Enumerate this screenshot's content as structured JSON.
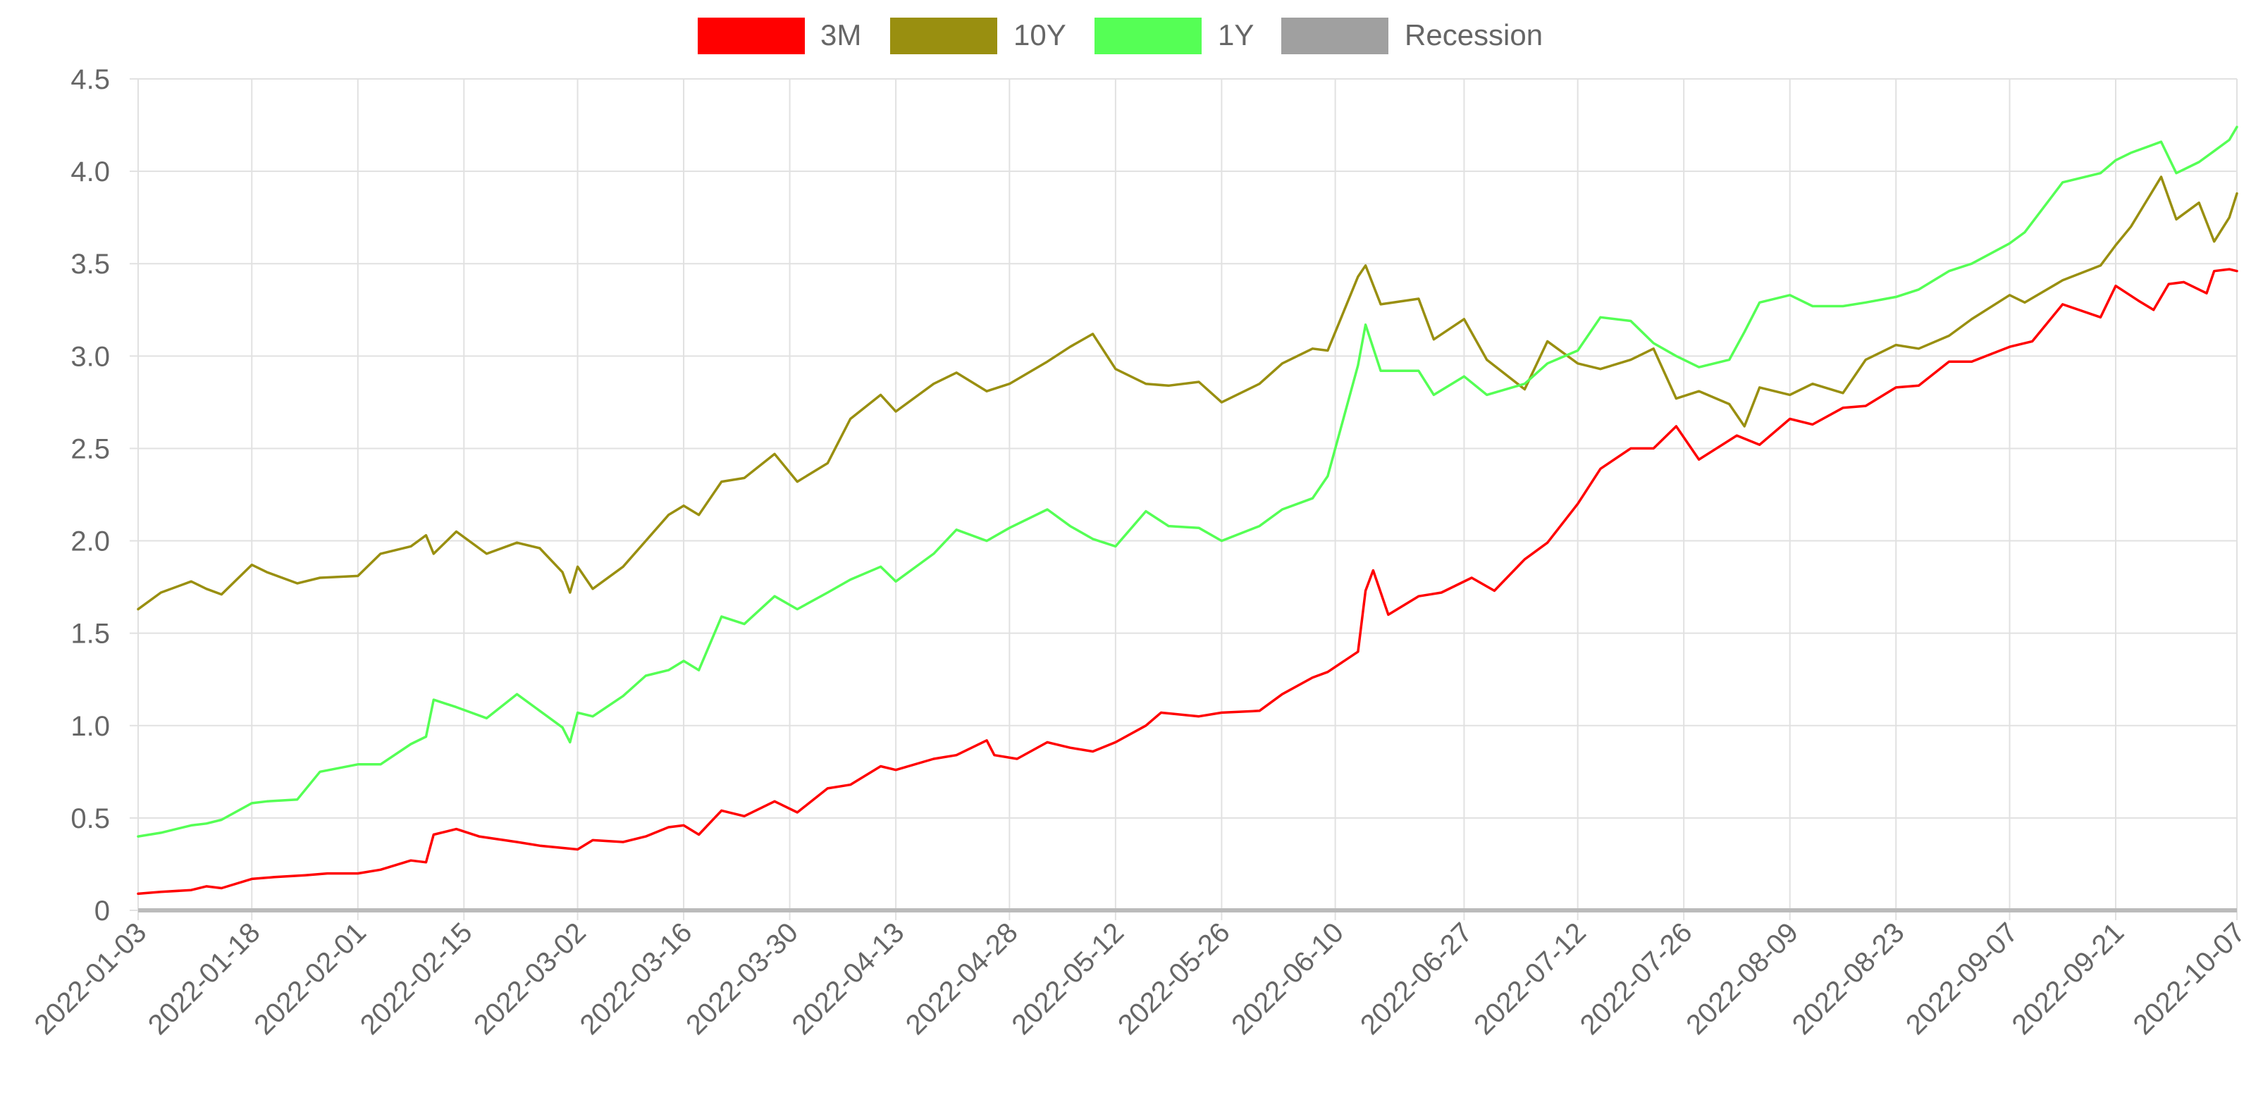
{
  "chart_data": {
    "type": "line",
    "legend": {
      "position": "top",
      "items": [
        {
          "label": "3M",
          "color": "#ff0000"
        },
        {
          "label": "10Y",
          "color": "#998f10"
        },
        {
          "label": "1Y",
          "color": "#55ff55"
        },
        {
          "label": "Recession",
          "color": "#a0a0a0"
        }
      ]
    },
    "x_start": "2022-01-03",
    "x_end": "2022-10-07",
    "x_tick_labels": [
      "2022-01-03",
      "2022-01-18",
      "2022-02-01",
      "2022-02-15",
      "2022-03-02",
      "2022-03-16",
      "2022-03-30",
      "2022-04-13",
      "2022-04-28",
      "2022-05-12",
      "2022-05-26",
      "2022-06-10",
      "2022-06-27",
      "2022-07-12",
      "2022-07-26",
      "2022-08-09",
      "2022-08-23",
      "2022-09-07",
      "2022-09-21",
      "2022-10-07"
    ],
    "y_ticks": [
      "0",
      "0.5",
      "1.0",
      "1.5",
      "2.0",
      "2.5",
      "3.0",
      "3.5",
      "4.0",
      "4.5"
    ],
    "ylim": [
      0,
      4.5
    ],
    "grid": true,
    "series": [
      {
        "name": "3M",
        "color": "#ff0000",
        "points": [
          [
            "2022-01-03",
            0.09
          ],
          [
            "2022-01-06",
            0.1
          ],
          [
            "2022-01-10",
            0.11
          ],
          [
            "2022-01-12",
            0.13
          ],
          [
            "2022-01-14",
            0.12
          ],
          [
            "2022-01-18",
            0.17
          ],
          [
            "2022-01-21",
            0.18
          ],
          [
            "2022-01-25",
            0.19
          ],
          [
            "2022-01-28",
            0.2
          ],
          [
            "2022-02-01",
            0.2
          ],
          [
            "2022-02-04",
            0.22
          ],
          [
            "2022-02-08",
            0.27
          ],
          [
            "2022-02-10",
            0.26
          ],
          [
            "2022-02-11",
            0.41
          ],
          [
            "2022-02-14",
            0.44
          ],
          [
            "2022-02-17",
            0.4
          ],
          [
            "2022-02-22",
            0.37
          ],
          [
            "2022-02-25",
            0.35
          ],
          [
            "2022-03-02",
            0.33
          ],
          [
            "2022-03-04",
            0.38
          ],
          [
            "2022-03-08",
            0.37
          ],
          [
            "2022-03-11",
            0.4
          ],
          [
            "2022-03-14",
            0.45
          ],
          [
            "2022-03-16",
            0.46
          ],
          [
            "2022-03-18",
            0.41
          ],
          [
            "2022-03-21",
            0.54
          ],
          [
            "2022-03-24",
            0.51
          ],
          [
            "2022-03-28",
            0.59
          ],
          [
            "2022-03-31",
            0.53
          ],
          [
            "2022-04-04",
            0.66
          ],
          [
            "2022-04-07",
            0.68
          ],
          [
            "2022-04-11",
            0.78
          ],
          [
            "2022-04-13",
            0.76
          ],
          [
            "2022-04-18",
            0.82
          ],
          [
            "2022-04-21",
            0.84
          ],
          [
            "2022-04-25",
            0.92
          ],
          [
            "2022-04-26",
            0.84
          ],
          [
            "2022-04-29",
            0.82
          ],
          [
            "2022-05-03",
            0.91
          ],
          [
            "2022-05-06",
            0.88
          ],
          [
            "2022-05-09",
            0.86
          ],
          [
            "2022-05-12",
            0.91
          ],
          [
            "2022-05-16",
            1.0
          ],
          [
            "2022-05-18",
            1.07
          ],
          [
            "2022-05-23",
            1.05
          ],
          [
            "2022-05-26",
            1.07
          ],
          [
            "2022-05-31",
            1.08
          ],
          [
            "2022-06-03",
            1.17
          ],
          [
            "2022-06-07",
            1.26
          ],
          [
            "2022-06-09",
            1.29
          ],
          [
            "2022-06-13",
            1.4
          ],
          [
            "2022-06-14",
            1.73
          ],
          [
            "2022-06-15",
            1.84
          ],
          [
            "2022-06-17",
            1.6
          ],
          [
            "2022-06-21",
            1.7
          ],
          [
            "2022-06-24",
            1.72
          ],
          [
            "2022-06-28",
            1.8
          ],
          [
            "2022-07-01",
            1.73
          ],
          [
            "2022-07-05",
            1.9
          ],
          [
            "2022-07-08",
            1.99
          ],
          [
            "2022-07-12",
            2.2
          ],
          [
            "2022-07-15",
            2.39
          ],
          [
            "2022-07-19",
            2.5
          ],
          [
            "2022-07-22",
            2.5
          ],
          [
            "2022-07-25",
            2.62
          ],
          [
            "2022-07-28",
            2.44
          ],
          [
            "2022-08-02",
            2.57
          ],
          [
            "2022-08-05",
            2.52
          ],
          [
            "2022-08-09",
            2.66
          ],
          [
            "2022-08-12",
            2.63
          ],
          [
            "2022-08-16",
            2.72
          ],
          [
            "2022-08-19",
            2.73
          ],
          [
            "2022-08-23",
            2.83
          ],
          [
            "2022-08-26",
            2.84
          ],
          [
            "2022-08-30",
            2.97
          ],
          [
            "2022-09-02",
            2.97
          ],
          [
            "2022-09-07",
            3.05
          ],
          [
            "2022-09-10",
            3.08
          ],
          [
            "2022-09-14",
            3.28
          ],
          [
            "2022-09-19",
            3.21
          ],
          [
            "2022-09-21",
            3.38
          ],
          [
            "2022-09-24",
            3.3
          ],
          [
            "2022-09-26",
            3.25
          ],
          [
            "2022-09-28",
            3.39
          ],
          [
            "2022-09-30",
            3.4
          ],
          [
            "2022-10-03",
            3.34
          ],
          [
            "2022-10-04",
            3.46
          ],
          [
            "2022-10-06",
            3.47
          ],
          [
            "2022-10-07",
            3.46
          ]
        ]
      },
      {
        "name": "10Y",
        "color": "#998f10",
        "points": [
          [
            "2022-01-03",
            1.63
          ],
          [
            "2022-01-06",
            1.72
          ],
          [
            "2022-01-10",
            1.78
          ],
          [
            "2022-01-12",
            1.74
          ],
          [
            "2022-01-14",
            1.71
          ],
          [
            "2022-01-18",
            1.87
          ],
          [
            "2022-01-20",
            1.83
          ],
          [
            "2022-01-24",
            1.77
          ],
          [
            "2022-01-27",
            1.8
          ],
          [
            "2022-02-01",
            1.81
          ],
          [
            "2022-02-04",
            1.93
          ],
          [
            "2022-02-08",
            1.97
          ],
          [
            "2022-02-10",
            2.03
          ],
          [
            "2022-02-11",
            1.93
          ],
          [
            "2022-02-14",
            2.05
          ],
          [
            "2022-02-18",
            1.93
          ],
          [
            "2022-02-22",
            1.99
          ],
          [
            "2022-02-25",
            1.96
          ],
          [
            "2022-02-28",
            1.83
          ],
          [
            "2022-03-01",
            1.72
          ],
          [
            "2022-03-02",
            1.86
          ],
          [
            "2022-03-04",
            1.74
          ],
          [
            "2022-03-08",
            1.86
          ],
          [
            "2022-03-11",
            2.0
          ],
          [
            "2022-03-14",
            2.14
          ],
          [
            "2022-03-16",
            2.19
          ],
          [
            "2022-03-18",
            2.14
          ],
          [
            "2022-03-21",
            2.32
          ],
          [
            "2022-03-24",
            2.34
          ],
          [
            "2022-03-28",
            2.47
          ],
          [
            "2022-03-31",
            2.32
          ],
          [
            "2022-04-04",
            2.42
          ],
          [
            "2022-04-07",
            2.66
          ],
          [
            "2022-04-11",
            2.79
          ],
          [
            "2022-04-13",
            2.7
          ],
          [
            "2022-04-18",
            2.85
          ],
          [
            "2022-04-21",
            2.91
          ],
          [
            "2022-04-25",
            2.81
          ],
          [
            "2022-04-28",
            2.85
          ],
          [
            "2022-05-03",
            2.97
          ],
          [
            "2022-05-06",
            3.05
          ],
          [
            "2022-05-09",
            3.12
          ],
          [
            "2022-05-12",
            2.93
          ],
          [
            "2022-05-16",
            2.85
          ],
          [
            "2022-05-19",
            2.84
          ],
          [
            "2022-05-23",
            2.86
          ],
          [
            "2022-05-26",
            2.75
          ],
          [
            "2022-05-31",
            2.85
          ],
          [
            "2022-06-03",
            2.96
          ],
          [
            "2022-06-07",
            3.04
          ],
          [
            "2022-06-09",
            3.03
          ],
          [
            "2022-06-13",
            3.43
          ],
          [
            "2022-06-14",
            3.49
          ],
          [
            "2022-06-16",
            3.28
          ],
          [
            "2022-06-21",
            3.31
          ],
          [
            "2022-06-23",
            3.09
          ],
          [
            "2022-06-27",
            3.2
          ],
          [
            "2022-06-30",
            2.98
          ],
          [
            "2022-07-05",
            2.82
          ],
          [
            "2022-07-08",
            3.08
          ],
          [
            "2022-07-12",
            2.96
          ],
          [
            "2022-07-15",
            2.93
          ],
          [
            "2022-07-19",
            2.98
          ],
          [
            "2022-07-22",
            3.04
          ],
          [
            "2022-07-25",
            2.77
          ],
          [
            "2022-07-28",
            2.81
          ],
          [
            "2022-08-01",
            2.74
          ],
          [
            "2022-08-03",
            2.62
          ],
          [
            "2022-08-05",
            2.83
          ],
          [
            "2022-08-09",
            2.79
          ],
          [
            "2022-08-12",
            2.85
          ],
          [
            "2022-08-16",
            2.8
          ],
          [
            "2022-08-19",
            2.98
          ],
          [
            "2022-08-23",
            3.06
          ],
          [
            "2022-08-26",
            3.04
          ],
          [
            "2022-08-30",
            3.11
          ],
          [
            "2022-09-02",
            3.2
          ],
          [
            "2022-09-07",
            3.33
          ],
          [
            "2022-09-09",
            3.29
          ],
          [
            "2022-09-14",
            3.41
          ],
          [
            "2022-09-19",
            3.49
          ],
          [
            "2022-09-21",
            3.6
          ],
          [
            "2022-09-23",
            3.7
          ],
          [
            "2022-09-27",
            3.97
          ],
          [
            "2022-09-29",
            3.74
          ],
          [
            "2022-10-02",
            3.83
          ],
          [
            "2022-10-04",
            3.62
          ],
          [
            "2022-10-06",
            3.75
          ],
          [
            "2022-10-07",
            3.88
          ]
        ]
      },
      {
        "name": "1Y",
        "color": "#55ff55",
        "points": [
          [
            "2022-01-03",
            0.4
          ],
          [
            "2022-01-06",
            0.42
          ],
          [
            "2022-01-10",
            0.46
          ],
          [
            "2022-01-12",
            0.47
          ],
          [
            "2022-01-14",
            0.49
          ],
          [
            "2022-01-18",
            0.58
          ],
          [
            "2022-01-20",
            0.59
          ],
          [
            "2022-01-24",
            0.6
          ],
          [
            "2022-01-27",
            0.75
          ],
          [
            "2022-02-01",
            0.79
          ],
          [
            "2022-02-04",
            0.79
          ],
          [
            "2022-02-08",
            0.9
          ],
          [
            "2022-02-10",
            0.94
          ],
          [
            "2022-02-11",
            1.14
          ],
          [
            "2022-02-14",
            1.1
          ],
          [
            "2022-02-18",
            1.04
          ],
          [
            "2022-02-22",
            1.17
          ],
          [
            "2022-02-25",
            1.08
          ],
          [
            "2022-02-28",
            0.99
          ],
          [
            "2022-03-01",
            0.91
          ],
          [
            "2022-03-02",
            1.07
          ],
          [
            "2022-03-04",
            1.05
          ],
          [
            "2022-03-08",
            1.16
          ],
          [
            "2022-03-11",
            1.27
          ],
          [
            "2022-03-14",
            1.3
          ],
          [
            "2022-03-16",
            1.35
          ],
          [
            "2022-03-18",
            1.3
          ],
          [
            "2022-03-21",
            1.59
          ],
          [
            "2022-03-24",
            1.55
          ],
          [
            "2022-03-28",
            1.7
          ],
          [
            "2022-03-31",
            1.63
          ],
          [
            "2022-04-04",
            1.72
          ],
          [
            "2022-04-07",
            1.79
          ],
          [
            "2022-04-11",
            1.86
          ],
          [
            "2022-04-13",
            1.78
          ],
          [
            "2022-04-18",
            1.93
          ],
          [
            "2022-04-21",
            2.06
          ],
          [
            "2022-04-25",
            2.0
          ],
          [
            "2022-04-28",
            2.07
          ],
          [
            "2022-05-03",
            2.17
          ],
          [
            "2022-05-06",
            2.08
          ],
          [
            "2022-05-09",
            2.01
          ],
          [
            "2022-05-12",
            1.97
          ],
          [
            "2022-05-16",
            2.16
          ],
          [
            "2022-05-19",
            2.08
          ],
          [
            "2022-05-23",
            2.07
          ],
          [
            "2022-05-26",
            2.0
          ],
          [
            "2022-05-31",
            2.08
          ],
          [
            "2022-06-03",
            2.17
          ],
          [
            "2022-06-07",
            2.23
          ],
          [
            "2022-06-09",
            2.35
          ],
          [
            "2022-06-13",
            2.95
          ],
          [
            "2022-06-14",
            3.17
          ],
          [
            "2022-06-16",
            2.92
          ],
          [
            "2022-06-21",
            2.92
          ],
          [
            "2022-06-23",
            2.79
          ],
          [
            "2022-06-27",
            2.89
          ],
          [
            "2022-06-30",
            2.79
          ],
          [
            "2022-07-05",
            2.85
          ],
          [
            "2022-07-08",
            2.96
          ],
          [
            "2022-07-12",
            3.03
          ],
          [
            "2022-07-15",
            3.21
          ],
          [
            "2022-07-19",
            3.19
          ],
          [
            "2022-07-22",
            3.07
          ],
          [
            "2022-07-25",
            3.0
          ],
          [
            "2022-07-28",
            2.94
          ],
          [
            "2022-08-01",
            2.98
          ],
          [
            "2022-08-03",
            3.13
          ],
          [
            "2022-08-05",
            3.29
          ],
          [
            "2022-08-09",
            3.33
          ],
          [
            "2022-08-12",
            3.27
          ],
          [
            "2022-08-16",
            3.27
          ],
          [
            "2022-08-19",
            3.29
          ],
          [
            "2022-08-23",
            3.32
          ],
          [
            "2022-08-26",
            3.36
          ],
          [
            "2022-08-30",
            3.46
          ],
          [
            "2022-09-02",
            3.5
          ],
          [
            "2022-09-07",
            3.61
          ],
          [
            "2022-09-09",
            3.67
          ],
          [
            "2022-09-14",
            3.94
          ],
          [
            "2022-09-19",
            3.99
          ],
          [
            "2022-09-21",
            4.06
          ],
          [
            "2022-09-23",
            4.1
          ],
          [
            "2022-09-27",
            4.16
          ],
          [
            "2022-09-29",
            3.99
          ],
          [
            "2022-10-02",
            4.05
          ],
          [
            "2022-10-04",
            4.11
          ],
          [
            "2022-10-06",
            4.17
          ],
          [
            "2022-10-07",
            4.24
          ]
        ]
      }
    ]
  }
}
